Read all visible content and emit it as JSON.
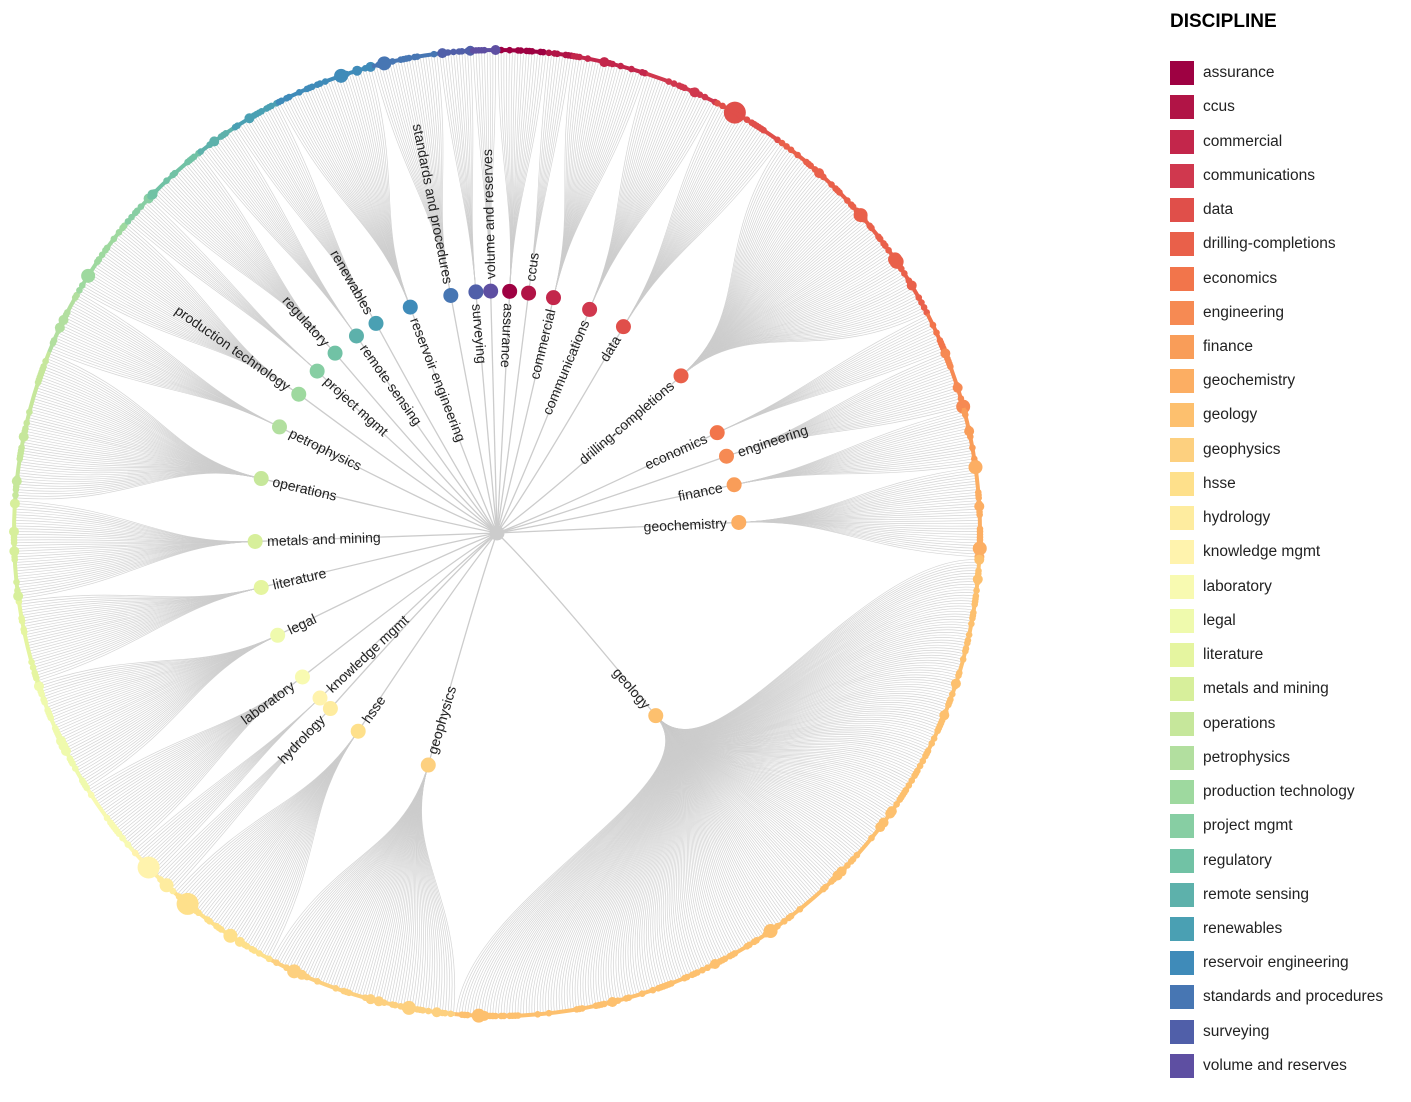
{
  "legend": {
    "title": "DISCIPLINE"
  },
  "link_color": "#cccccc",
  "root_color": "#cccccc",
  "disciplines": [
    {
      "name": "assurance",
      "color": "#9e0142",
      "leaves": 18
    },
    {
      "name": "ccus",
      "color": "#b11446",
      "leaves": 9
    },
    {
      "name": "commercial",
      "color": "#c3264b",
      "leaves": 27
    },
    {
      "name": "communications",
      "color": "#d0384e",
      "leaves": 27
    },
    {
      "name": "data",
      "color": "#e04f4a",
      "leaves": 27
    },
    {
      "name": "drilling-completions",
      "color": "#e9604a",
      "leaves": 81
    },
    {
      "name": "economics",
      "color": "#f2754b",
      "leaves": 15
    },
    {
      "name": "engineering",
      "color": "#f68a53",
      "leaves": 21
    },
    {
      "name": "finance",
      "color": "#f99d59",
      "leaves": 21
    },
    {
      "name": "geochemistry",
      "color": "#fcae63",
      "leaves": 33
    },
    {
      "name": "geology",
      "color": "#fdc06e",
      "leaves": 276
    },
    {
      "name": "geophysics",
      "color": "#fdd07f",
      "leaves": 69
    },
    {
      "name": "hsse",
      "color": "#fee08b",
      "leaves": 42
    },
    {
      "name": "hydrology",
      "color": "#feec9f",
      "leaves": 9
    },
    {
      "name": "knowledge mgmt",
      "color": "#fff3ad",
      "leaves": 12
    },
    {
      "name": "laboratory",
      "color": "#f8fab1",
      "leaves": 27
    },
    {
      "name": "legal",
      "color": "#effaad",
      "leaves": 42
    },
    {
      "name": "literature",
      "color": "#e5f5a0",
      "leaves": 30
    },
    {
      "name": "metals and mining",
      "color": "#d7ef9b",
      "leaves": 36
    },
    {
      "name": "operations",
      "color": "#c6e79b",
      "leaves": 54
    },
    {
      "name": "petrophysics",
      "color": "#b2df9f",
      "leaves": 24
    },
    {
      "name": "production technology",
      "color": "#9ed99f",
      "leaves": 30
    },
    {
      "name": "project mgmt",
      "color": "#87cea3",
      "leaves": 12
    },
    {
      "name": "regulatory",
      "color": "#71c2a5",
      "leaves": 24
    },
    {
      "name": "remote sensing",
      "color": "#5db1ab",
      "leaves": 15
    },
    {
      "name": "renewables",
      "color": "#4aa0b3",
      "leaves": 18
    },
    {
      "name": "reservoir engineering",
      "color": "#3f8bb9",
      "leaves": 36
    },
    {
      "name": "standards and procedures",
      "color": "#4776b3",
      "leaves": 24
    },
    {
      "name": "surveying",
      "color": "#505fa9",
      "leaves": 12
    },
    {
      "name": "volume and reserves",
      "color": "#5e4fa2",
      "leaves": 9
    }
  ]
}
